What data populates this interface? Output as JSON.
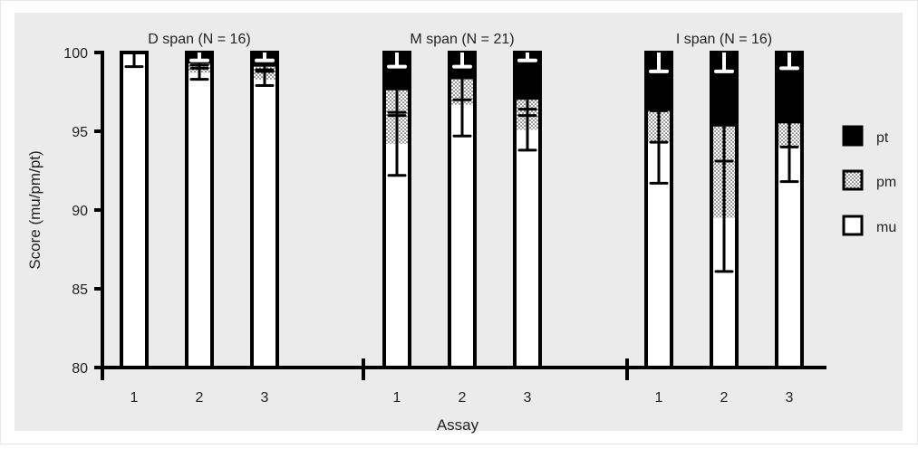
{
  "chart_data": {
    "type": "bar",
    "stacked": true,
    "xlabel": "Assay",
    "ylabel": "Score (mu/pm/pt)",
    "ylim": [
      80,
      100
    ],
    "yticks": [
      80,
      85,
      90,
      95,
      100
    ],
    "legend_position": "right",
    "legend": [
      {
        "key": "pt",
        "label": "pt",
        "pattern": "solid-black"
      },
      {
        "key": "pm",
        "label": "pm",
        "pattern": "stipple"
      },
      {
        "key": "mu",
        "label": "mu",
        "pattern": "white"
      }
    ],
    "groups": [
      {
        "title": "D span (N = 16)",
        "bars": [
          {
            "category": "1",
            "mu": 100.0,
            "mu_err": [
              99.1,
              100.0
            ],
            "pm": 0.0,
            "pm_err": null,
            "pt": 0.0,
            "pt_err": [
              100.0,
              100.0
            ]
          },
          {
            "category": "2",
            "mu": 98.7,
            "mu_err": [
              98.3,
              99.2
            ],
            "pm": 0.6,
            "pm_err": [
              99.0,
              99.6
            ],
            "pt": 0.7,
            "pt_err": [
              99.5,
              100.0
            ]
          },
          {
            "category": "3",
            "mu": 98.3,
            "mu_err": [
              97.9,
              98.9
            ],
            "pm": 0.8,
            "pm_err": [
              98.8,
              99.4
            ],
            "pt": 0.9,
            "pt_err": [
              99.5,
              100.0
            ]
          }
        ]
      },
      {
        "title": "M span (N = 21)",
        "bars": [
          {
            "category": "1",
            "mu": 94.2,
            "mu_err": [
              92.2,
              96.2
            ],
            "pm": 3.4,
            "pm_err": [
              96.0,
              97.6
            ],
            "pt": 2.4,
            "pt_err": [
              99.1,
              100.0
            ]
          },
          {
            "category": "2",
            "mu": 96.7,
            "mu_err": [
              94.7,
              98.7
            ],
            "pm": 1.6,
            "pm_err": [
              97.0,
              98.3
            ],
            "pt": 1.7,
            "pt_err": [
              99.1,
              100.0
            ]
          },
          {
            "category": "3",
            "mu": 95.1,
            "mu_err": [
              93.8,
              96.4
            ],
            "pm": 1.9,
            "pm_err": [
              96.0,
              97.0
            ],
            "pt": 3.0,
            "pt_err": [
              99.5,
              100.0
            ]
          }
        ]
      },
      {
        "title": "I span (N = 16)",
        "bars": [
          {
            "category": "1",
            "mu": 94.3,
            "mu_err": [
              91.7,
              96.3
            ],
            "pm": 2.0,
            "pm_err": [
              94.3,
              96.3
            ],
            "pt": 3.7,
            "pt_err": [
              98.8,
              100.0
            ]
          },
          {
            "category": "2",
            "mu": 89.5,
            "mu_err": [
              86.1,
              93.1
            ],
            "pm": 5.8,
            "pm_err": [
              93.1,
              95.3
            ],
            "pt": 4.7,
            "pt_err": [
              98.8,
              100.0
            ]
          },
          {
            "category": "3",
            "mu": 94.0,
            "mu_err": [
              91.8,
              96.0
            ],
            "pm": 1.5,
            "pm_err": [
              94.0,
              95.5
            ],
            "pt": 4.5,
            "pt_err": [
              99.0,
              100.0
            ]
          }
        ]
      }
    ]
  }
}
